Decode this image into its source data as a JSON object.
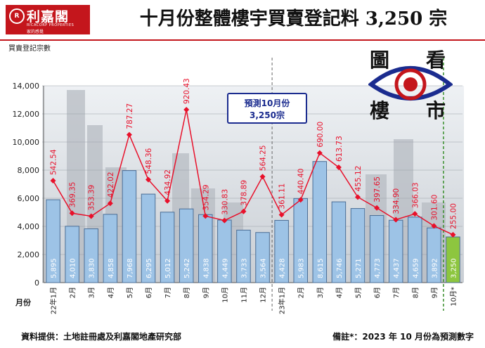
{
  "header": {
    "logo_name": "利嘉閣",
    "logo_english": "RICACORP PROPERTIES",
    "logo_slogan": "家的感覺",
    "title": "十月份整體樓宇買賣登記料 3,250 宗"
  },
  "forecast_box": {
    "line1": "預測10月份",
    "line2": "3,250宗"
  },
  "brand_seal": {
    "chars": [
      "圖",
      "看",
      "樓",
      "市"
    ],
    "mark": "R"
  },
  "footer": {
    "source": "資料提供：土地註冊處及利嘉閣地產研究部",
    "note": "備註*：2023 年 10 月份為預測數字"
  },
  "colors": {
    "bar_fill": "#9dc3e6",
    "bar_stroke": "#4a6d95",
    "forecast_bar": "#8dc63f",
    "line": "#e8102a",
    "brand_red": "#c4161c",
    "box_blue": "#1b2c8f"
  },
  "chart_data": {
    "type": "bar",
    "ylabel": "買賣登記宗數",
    "xlabel": "月份",
    "ylim": [
      0,
      14000
    ],
    "yticks": [
      "0",
      "2,000",
      "4,000",
      "6,000",
      "8,000",
      "10,000",
      "12,000",
      "14,000"
    ],
    "categories": [
      "22年1月",
      "2月",
      "3月",
      "4月",
      "5月",
      "6月",
      "7月",
      "8月",
      "9月",
      "10月",
      "11月",
      "12月",
      "23年1月",
      "2月",
      "3月",
      "4月",
      "5月",
      "6月",
      "7月",
      "8月",
      "9月",
      "10月*"
    ],
    "series": [
      {
        "kind": "bar",
        "values": [
          5895,
          4010,
          3830,
          4858,
          7968,
          6295,
          5012,
          5242,
          4838,
          4449,
          3733,
          3564,
          4428,
          5983,
          8615,
          5746,
          5271,
          4773,
          4437,
          4659,
          3892,
          3250
        ],
        "labels": [
          "5,895",
          "4,010",
          "3,830",
          "4,858",
          "7,968",
          "6,295",
          "5,012",
          "5,242",
          "4,838",
          "4,449",
          "3,733",
          "3,564",
          "4,428",
          "5,983",
          "8,615",
          "5,746",
          "5,271",
          "4,773",
          "4,437",
          "4,659",
          "3,892",
          "3,250"
        ]
      },
      {
        "kind": "line",
        "values": [
          542.54,
          369.35,
          353.39,
          422.02,
          787.27,
          548.36,
          434.92,
          920.43,
          354.29,
          330.83,
          378.89,
          564.25,
          361.11,
          440.4,
          690.0,
          613.73,
          455.12,
          397.65,
          334.9,
          366.03,
          301.6,
          255.0
        ],
        "labels": [
          "542.54",
          "369.35",
          "353.39",
          "422.02",
          "787.27",
          "548.36",
          "434.92",
          "920.43",
          "354.29",
          "330.83",
          "378.89",
          "564.25",
          "361.11",
          "440.40",
          "690.00",
          "613.73",
          "455.12",
          "397.65",
          "334.90",
          "366.03",
          "301.60",
          "255.00"
        ]
      }
    ],
    "forecast_index": 21,
    "year_separators_after": [
      11,
      20
    ]
  }
}
